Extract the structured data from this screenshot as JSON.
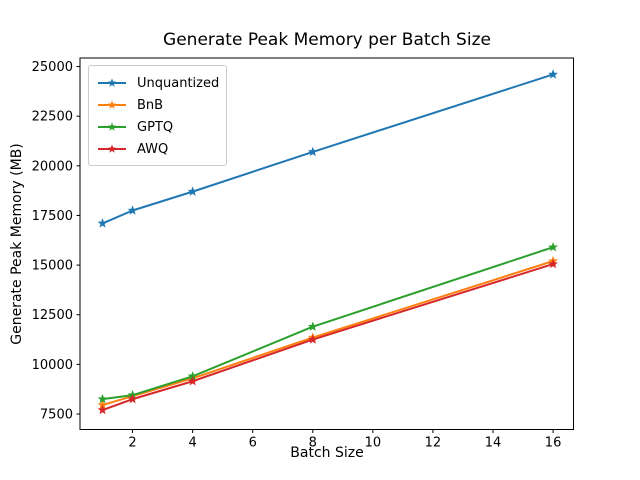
{
  "chart_data": {
    "type": "line",
    "title": "Generate Peak Memory per Batch Size",
    "xlabel": "Batch Size",
    "ylabel": "Generate Peak Memory (MB)",
    "x": [
      1,
      2,
      4,
      8,
      16
    ],
    "series": [
      {
        "name": "Unquantized",
        "color": "#1f77b4",
        "values": [
          17100,
          17750,
          18700,
          20700,
          24600
        ]
      },
      {
        "name": "BnB",
        "color": "#ff7f0e",
        "values": [
          7950,
          8400,
          9300,
          11350,
          15200
        ]
      },
      {
        "name": "GPTQ",
        "color": "#2ca02c",
        "values": [
          8250,
          8450,
          9400,
          11900,
          15900
        ]
      },
      {
        "name": "AWQ",
        "color": "#d62728",
        "values": [
          7700,
          8250,
          9150,
          11250,
          15050
        ]
      }
    ],
    "marker": "star",
    "x_ticks": [
      2,
      4,
      6,
      8,
      10,
      12,
      14,
      16
    ],
    "y_ticks": [
      7500,
      10000,
      12500,
      15000,
      17500,
      20000,
      22500,
      25000
    ],
    "xlim": [
      0.25,
      16.68
    ],
    "ylim": [
      6720,
      25430
    ],
    "grid": false,
    "legend_position": "upper-left",
    "axis_color": "#000000",
    "background_color": "#ffffff"
  }
}
